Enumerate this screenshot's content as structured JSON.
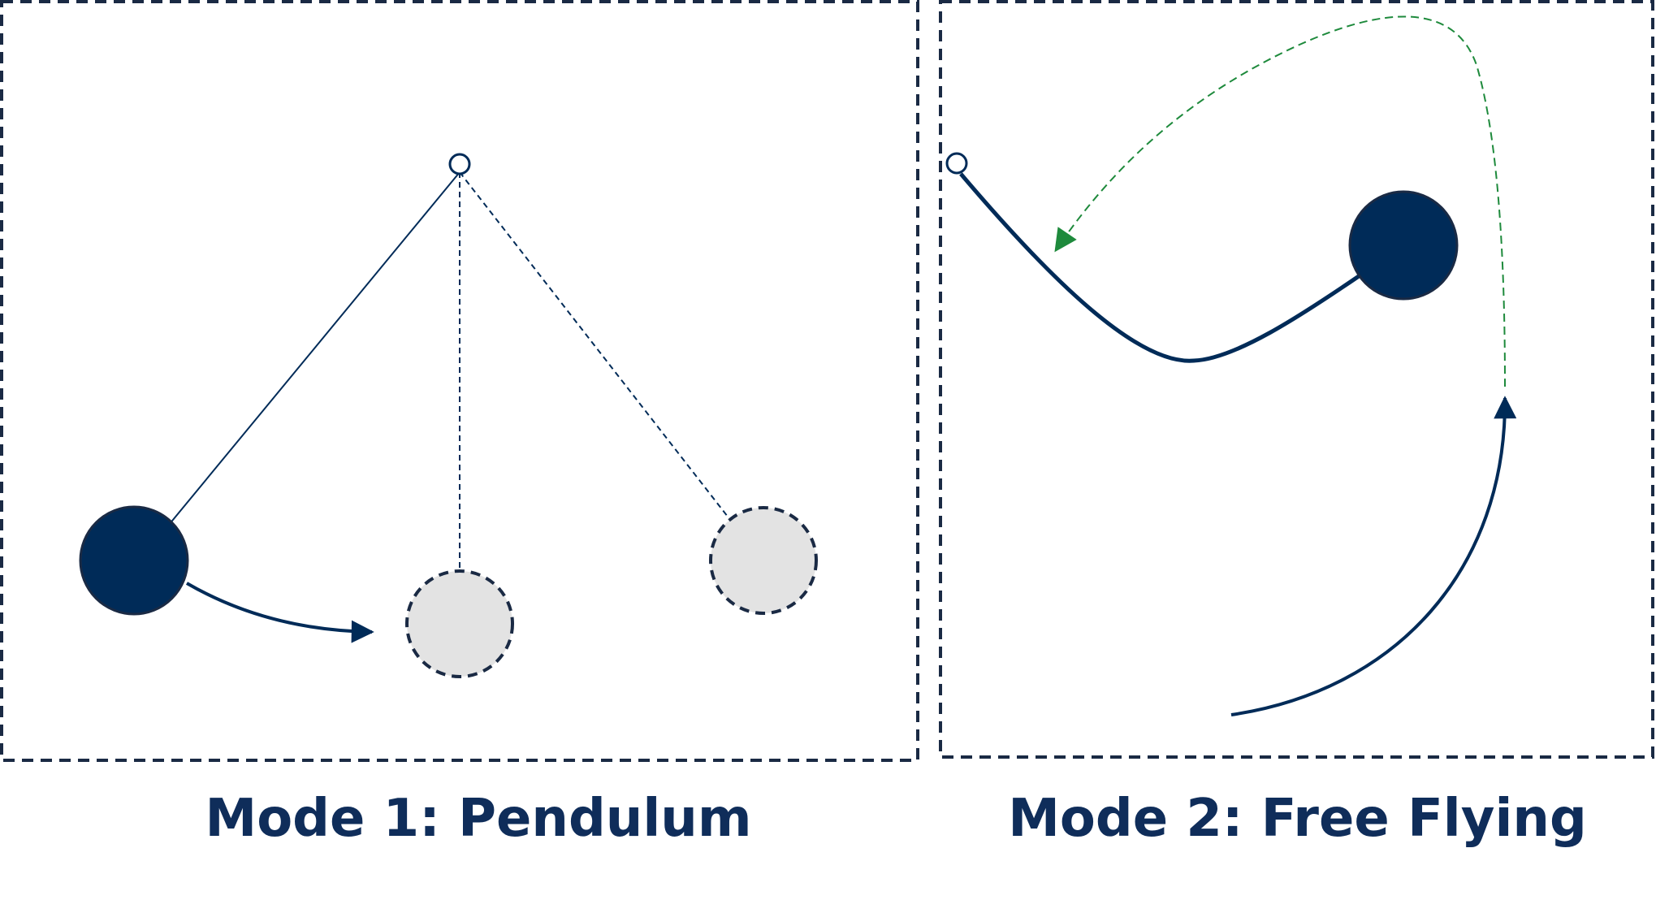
{
  "panels": [
    {
      "id": "pendulum",
      "caption": "Mode 1: Pendulum"
    },
    {
      "id": "free-flying",
      "caption": "Mode 2: Free Flying"
    }
  ],
  "colors": {
    "navy": "#002b58",
    "ghost_fill": "#e3e3e3",
    "green_path": "#1e8a3c",
    "frame": "#1a2a44",
    "caption": "#0f2d5a"
  }
}
